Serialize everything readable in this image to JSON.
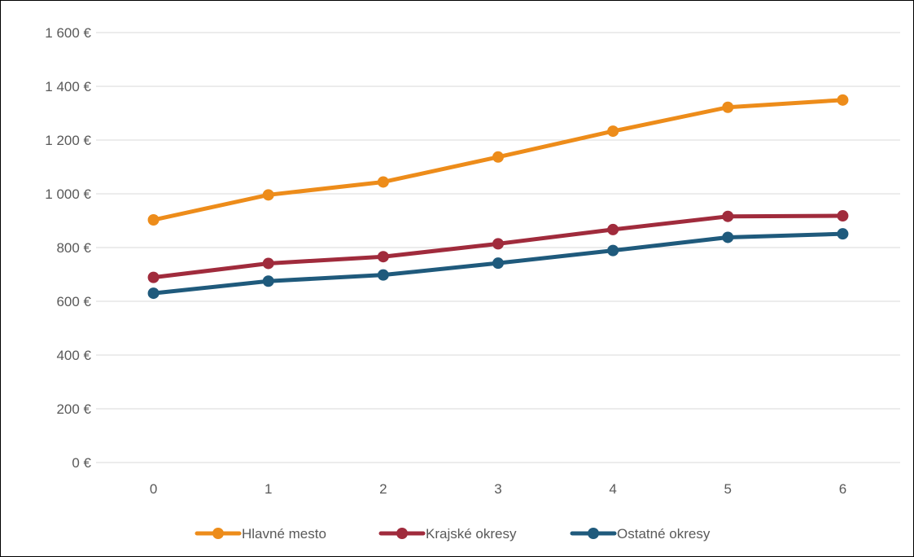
{
  "chart_data": {
    "type": "line",
    "x": [
      "0",
      "1",
      "2",
      "3",
      "4",
      "5",
      "6"
    ],
    "ylim": [
      0,
      1600
    ],
    "y_ticks": [
      "0 €",
      "200 €",
      "400 €",
      "600 €",
      "800 €",
      "1 000 €",
      "1 200 €",
      "1 400 €",
      "1 600 €"
    ],
    "y_tick_values": [
      0,
      200,
      400,
      600,
      800,
      1000,
      1200,
      1400,
      1600
    ],
    "grid": true,
    "legend_position": "bottom",
    "series": [
      {
        "name": "Hlavné mesto",
        "color": "#ED8C1A",
        "values": [
          903,
          996,
          1044,
          1137,
          1233,
          1322,
          1349
        ]
      },
      {
        "name": "Krajské okresy",
        "color": "#A02B3C",
        "values": [
          689,
          741,
          766,
          814,
          867,
          916,
          918
        ]
      },
      {
        "name": "Ostatné okresy",
        "color": "#1F5A7C",
        "values": [
          630,
          675,
          698,
          742,
          789,
          838,
          851
        ]
      }
    ]
  }
}
